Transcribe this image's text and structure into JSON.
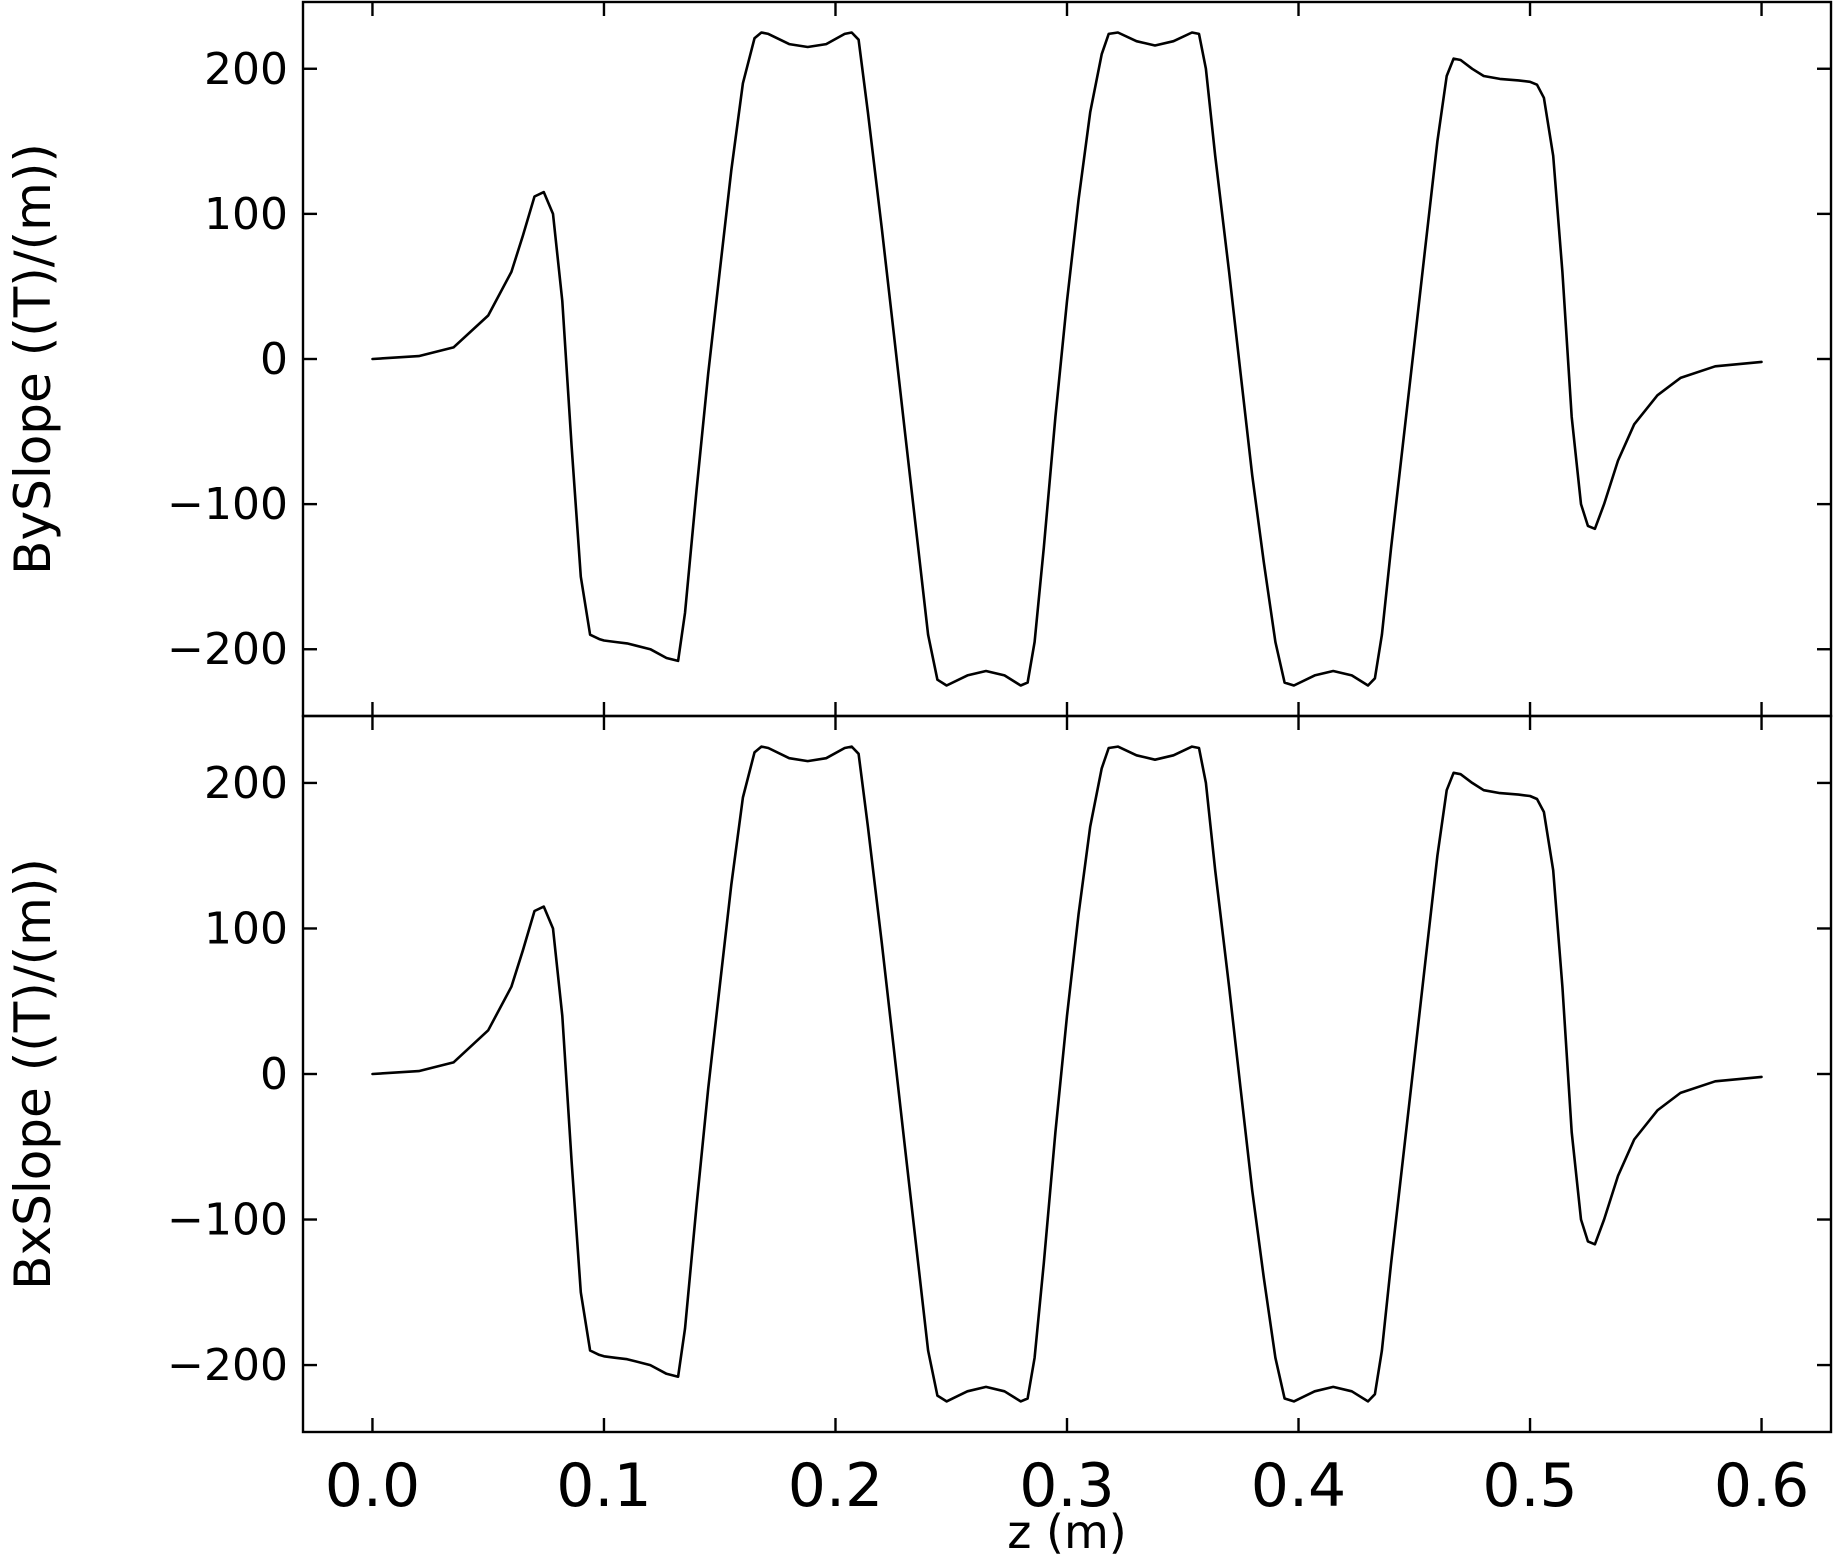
{
  "chart_data": [
    {
      "type": "line",
      "panel": "top",
      "xlabel": "",
      "ylabel": "BySlope ((T)/(m))",
      "xlim": [
        -0.03,
        0.63
      ],
      "ylim": [
        -246,
        246
      ],
      "x_ticks": [
        0.0,
        0.1,
        0.2,
        0.3,
        0.4,
        0.5,
        0.6
      ],
      "y_ticks": [
        -200,
        -100,
        0,
        100,
        200
      ],
      "y_tick_labels": [
        "−200",
        "−100",
        "0",
        "100",
        "200"
      ],
      "series": [
        {
          "x": [
            0.0,
            0.02,
            0.035,
            0.05,
            0.06,
            0.065,
            0.07,
            0.074,
            0.078,
            0.082,
            0.086,
            0.09,
            0.094,
            0.098,
            0.1,
            0.105,
            0.11,
            0.12,
            0.127,
            0.132,
            0.135,
            0.14,
            0.145,
            0.15,
            0.155,
            0.16,
            0.165,
            0.168,
            0.171,
            0.18,
            0.188,
            0.196,
            0.204,
            0.207,
            0.21,
            0.214,
            0.22,
            0.225,
            0.23,
            0.235,
            0.24,
            0.244,
            0.248,
            0.257,
            0.265,
            0.273,
            0.28,
            0.283,
            0.286,
            0.29,
            0.295,
            0.3,
            0.305,
            0.31,
            0.315,
            0.318,
            0.322,
            0.33,
            0.338,
            0.346,
            0.354,
            0.357,
            0.36,
            0.364,
            0.37,
            0.375,
            0.38,
            0.385,
            0.39,
            0.394,
            0.398,
            0.407,
            0.415,
            0.423,
            0.43,
            0.433,
            0.436,
            0.44,
            0.445,
            0.45,
            0.455,
            0.46,
            0.464,
            0.467,
            0.47,
            0.475,
            0.48,
            0.487,
            0.495,
            0.5,
            0.503,
            0.506,
            0.51,
            0.514,
            0.518,
            0.522,
            0.525,
            0.528,
            0.532,
            0.538,
            0.545,
            0.555,
            0.565,
            0.58,
            0.6
          ],
          "y": [
            0,
            2,
            8,
            30,
            60,
            85,
            112,
            115,
            100,
            40,
            -60,
            -150,
            -190,
            -193,
            -194,
            -195,
            -196,
            -200,
            -206,
            -208,
            -175,
            -90,
            -10,
            60,
            130,
            190,
            221,
            225,
            224,
            217,
            215,
            217,
            224,
            225,
            220,
            170,
            90,
            20,
            -50,
            -120,
            -190,
            -221,
            -225,
            -218,
            -215,
            -218,
            -225,
            -223,
            -195,
            -130,
            -40,
            40,
            110,
            170,
            210,
            224,
            225,
            219,
            216,
            219,
            225,
            224,
            200,
            140,
            60,
            -10,
            -80,
            -140,
            -195,
            -223,
            -225,
            -218,
            -215,
            -218,
            -225,
            -220,
            -190,
            -130,
            -60,
            10,
            80,
            150,
            195,
            207,
            206,
            200,
            195,
            193,
            192,
            191,
            189,
            180,
            140,
            60,
            -40,
            -100,
            -115,
            -117,
            -100,
            -70,
            -45,
            -25,
            -13,
            -5,
            -2
          ]
        }
      ]
    },
    {
      "type": "line",
      "panel": "bottom",
      "xlabel": "z (m)",
      "ylabel": "BxSlope ((T)/(m))",
      "xlim": [
        -0.03,
        0.63
      ],
      "ylim": [
        -246,
        246
      ],
      "x_ticks": [
        0.0,
        0.1,
        0.2,
        0.3,
        0.4,
        0.5,
        0.6
      ],
      "x_tick_labels": [
        "0.0",
        "0.1",
        "0.2",
        "0.3",
        "0.4",
        "0.5",
        "0.6"
      ],
      "y_ticks": [
        -200,
        -100,
        0,
        100,
        200
      ],
      "y_tick_labels": [
        "−200",
        "−100",
        "0",
        "100",
        "200"
      ],
      "series": [
        {
          "x": [
            0.0,
            0.02,
            0.035,
            0.05,
            0.06,
            0.065,
            0.07,
            0.074,
            0.078,
            0.082,
            0.086,
            0.09,
            0.094,
            0.098,
            0.1,
            0.105,
            0.11,
            0.12,
            0.127,
            0.132,
            0.135,
            0.14,
            0.145,
            0.15,
            0.155,
            0.16,
            0.165,
            0.168,
            0.171,
            0.18,
            0.188,
            0.196,
            0.204,
            0.207,
            0.21,
            0.214,
            0.22,
            0.225,
            0.23,
            0.235,
            0.24,
            0.244,
            0.248,
            0.257,
            0.265,
            0.273,
            0.28,
            0.283,
            0.286,
            0.29,
            0.295,
            0.3,
            0.305,
            0.31,
            0.315,
            0.318,
            0.322,
            0.33,
            0.338,
            0.346,
            0.354,
            0.357,
            0.36,
            0.364,
            0.37,
            0.375,
            0.38,
            0.385,
            0.39,
            0.394,
            0.398,
            0.407,
            0.415,
            0.423,
            0.43,
            0.433,
            0.436,
            0.44,
            0.445,
            0.45,
            0.455,
            0.46,
            0.464,
            0.467,
            0.47,
            0.475,
            0.48,
            0.487,
            0.495,
            0.5,
            0.503,
            0.506,
            0.51,
            0.514,
            0.518,
            0.522,
            0.525,
            0.528,
            0.532,
            0.538,
            0.545,
            0.555,
            0.565,
            0.58,
            0.6
          ],
          "y": [
            0,
            2,
            8,
            30,
            60,
            85,
            112,
            115,
            100,
            40,
            -60,
            -150,
            -190,
            -193,
            -194,
            -195,
            -196,
            -200,
            -206,
            -208,
            -175,
            -90,
            -10,
            60,
            130,
            190,
            221,
            225,
            224,
            217,
            215,
            217,
            224,
            225,
            220,
            170,
            90,
            20,
            -50,
            -120,
            -190,
            -221,
            -225,
            -218,
            -215,
            -218,
            -225,
            -223,
            -195,
            -130,
            -40,
            40,
            110,
            170,
            210,
            224,
            225,
            219,
            216,
            219,
            225,
            224,
            200,
            140,
            60,
            -10,
            -80,
            -140,
            -195,
            -223,
            -225,
            -218,
            -215,
            -218,
            -225,
            -220,
            -190,
            -130,
            -60,
            10,
            80,
            150,
            195,
            207,
            206,
            200,
            195,
            193,
            192,
            191,
            189,
            180,
            140,
            60,
            -40,
            -100,
            -115,
            -117,
            -100,
            -70,
            -45,
            -25,
            -13,
            -5,
            -2
          ]
        }
      ]
    }
  ]
}
